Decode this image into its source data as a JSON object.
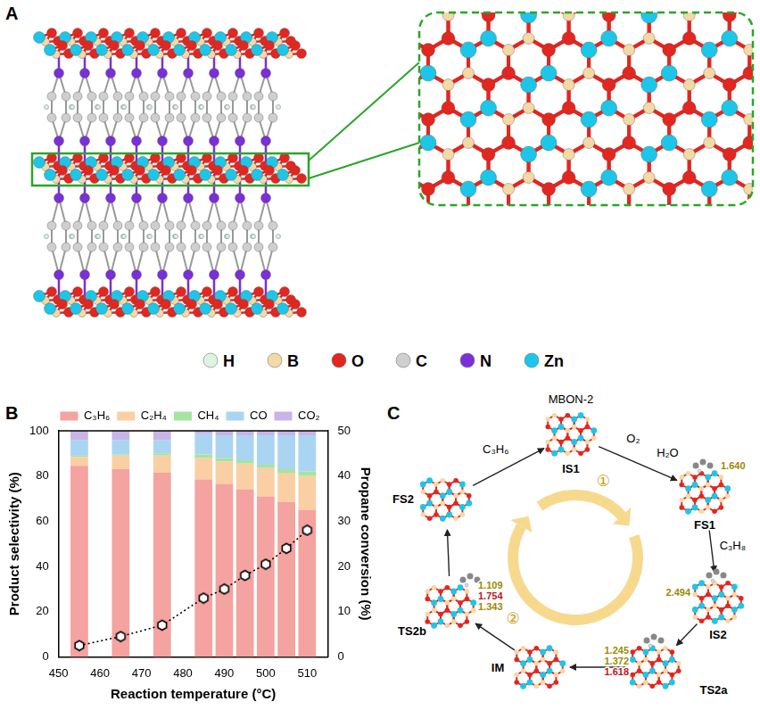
{
  "panel_labels": [
    "A",
    "B",
    "C"
  ],
  "structure": {
    "elements": [
      {
        "symbol": "H",
        "color": "#dff3e1"
      },
      {
        "symbol": "B",
        "color": "#f2d9a6"
      },
      {
        "symbol": "O",
        "color": "#e3261f"
      },
      {
        "symbol": "C",
        "color": "#cfcfcf"
      },
      {
        "symbol": "N",
        "color": "#7a2fd8"
      },
      {
        "symbol": "Zn",
        "color": "#1cc6e8"
      }
    ]
  },
  "chart_data": {
    "type": "bar",
    "stacked": true,
    "grid": false,
    "legend": "top",
    "x": [
      455,
      465,
      475,
      485,
      490,
      495,
      500,
      505,
      510
    ],
    "xlim": [
      450,
      515
    ],
    "xticks": [
      450,
      460,
      470,
      480,
      490,
      500,
      510
    ],
    "ylim": [
      0,
      100
    ],
    "yticks": [
      0,
      20,
      40,
      60,
      80,
      100
    ],
    "y2lim": [
      0,
      50
    ],
    "y2ticks": [
      0,
      10,
      20,
      30,
      40,
      50
    ],
    "x_label": "Reaction temperature (°C)",
    "y_label": "Product selectivity (%)",
    "y2_label": "Propane conversion (%)",
    "series": [
      {
        "name": "C₃H₆",
        "color": "#f4a3a0",
        "values": [
          84.5,
          83,
          81.5,
          78.5,
          76.5,
          74,
          71,
          68.5,
          65
        ]
      },
      {
        "name": "C₂H₄",
        "color": "#f9cfa3",
        "values": [
          4,
          6,
          7.5,
          9.5,
          10,
          11.5,
          12.5,
          13,
          15
        ]
      },
      {
        "name": "CH₄",
        "color": "#a6e3a0",
        "values": [
          0.5,
          0.5,
          1,
          1.5,
          1.5,
          1.5,
          1.5,
          1.5,
          2
        ]
      },
      {
        "name": "CO",
        "color": "#a9d5f2",
        "values": [
          7,
          6.5,
          6,
          9,
          10,
          11,
          13,
          15,
          16
        ]
      },
      {
        "name": "CO₂",
        "color": "#c8b4e8",
        "values": [
          4,
          4,
          4,
          1.5,
          2,
          2,
          2,
          2,
          2
        ]
      },
      {
        "type": "line",
        "axis": "y2",
        "color": "#000000",
        "marker": "hexagon",
        "line_style": "dotted",
        "values": [
          2.5,
          4.5,
          7,
          13,
          15,
          18,
          20.5,
          24,
          28
        ]
      }
    ]
  },
  "cycle": {
    "title": "MBON-2",
    "states": [
      {
        "label": "IS1",
        "distances": []
      },
      {
        "label": "FS1",
        "distances": [
          {
            "text": "1.640",
            "color": "#9a8a00"
          }
        ]
      },
      {
        "label": "IS2",
        "distances": [
          {
            "text": "2.494",
            "color": "#9a8a00"
          }
        ]
      },
      {
        "label": "TS2a",
        "distances": [
          {
            "text": "1.245",
            "color": "#9a8a00"
          },
          {
            "text": "1.372",
            "color": "#9a8a00"
          },
          {
            "text": "1.618",
            "color": "#c0141b"
          }
        ]
      },
      {
        "label": "IM",
        "distances": []
      },
      {
        "label": "TS2b",
        "distances": [
          {
            "text": "1.109",
            "color": "#9a8a00"
          },
          {
            "text": "1.754",
            "color": "#c0141b"
          },
          {
            "text": "1.343",
            "color": "#9a8a00"
          }
        ]
      },
      {
        "label": "FS2",
        "distances": []
      }
    ],
    "steps": [
      {
        "from": "IS1",
        "in": "O₂",
        "out": "H₂O"
      },
      {
        "from": "FS1",
        "in": "C₃H₈"
      },
      {
        "from": "FS2",
        "out": "C₃H₆"
      }
    ],
    "pathways": [
      "①",
      "②"
    ]
  }
}
